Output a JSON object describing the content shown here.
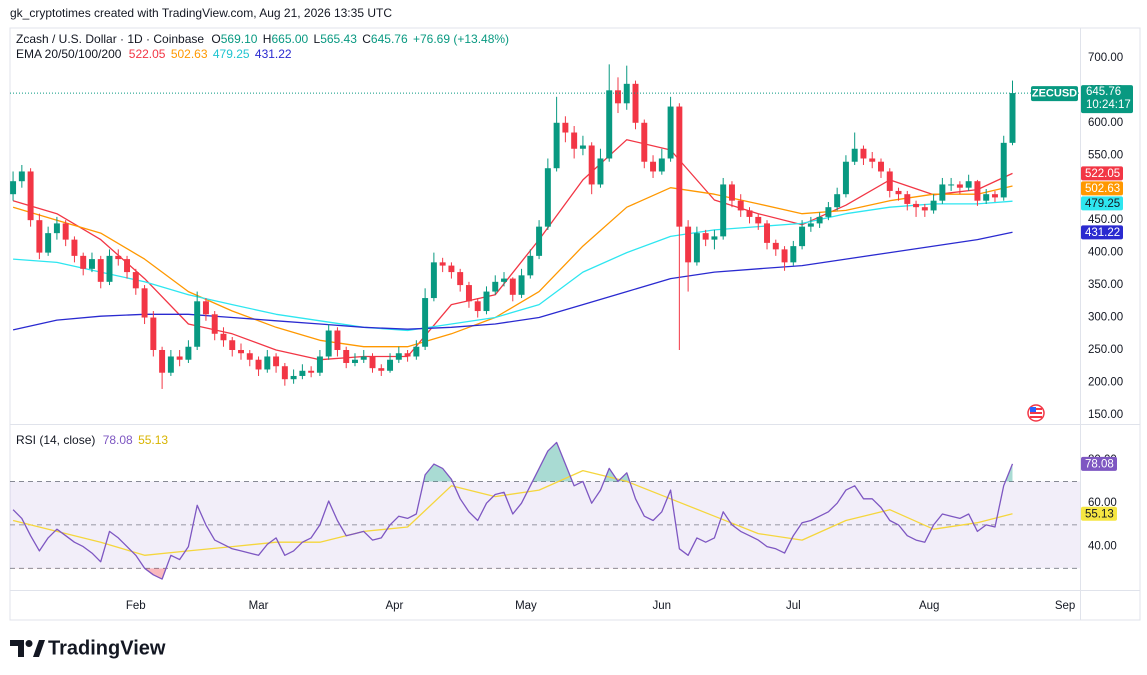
{
  "header": {
    "attribution": "gk_cryptotimes created with TradingView.com, Aug 21, 2026 13:35 UTC"
  },
  "footer": {
    "logo": "TradingView"
  },
  "chart_data": [
    {
      "type": "candlestick",
      "title": "Zcash / U.S. Dollar · 1D · Coinbase",
      "ohlc_labels": [
        "O",
        "H",
        "L",
        "C"
      ],
      "ohlc": [
        "569.10",
        "665.00",
        "565.43",
        "645.76"
      ],
      "change": "+76.69 (+13.48%)",
      "indicator": "EMA 20/50/100/200",
      "symbol_tag": "ZECUSD",
      "countdown": "10:24:17",
      "up_color": "#089981",
      "down_color": "#f23645",
      "candles": [
        [
          490,
          525,
          480,
          510
        ],
        [
          510,
          535,
          500,
          525
        ],
        [
          525,
          530,
          440,
          450
        ],
        [
          450,
          460,
          390,
          400
        ],
        [
          400,
          440,
          395,
          430
        ],
        [
          430,
          455,
          420,
          445
        ],
        [
          445,
          450,
          410,
          420
        ],
        [
          420,
          425,
          385,
          395
        ],
        [
          395,
          400,
          365,
          375
        ],
        [
          375,
          400,
          370,
          390
        ],
        [
          390,
          395,
          345,
          355
        ],
        [
          355,
          405,
          350,
          395
        ],
        [
          395,
          405,
          380,
          390
        ],
        [
          390,
          395,
          360,
          370
        ],
        [
          370,
          375,
          335,
          345
        ],
        [
          345,
          350,
          290,
          300
        ],
        [
          300,
          310,
          240,
          250
        ],
        [
          250,
          255,
          190,
          215
        ],
        [
          215,
          250,
          210,
          240
        ],
        [
          240,
          250,
          225,
          235
        ],
        [
          235,
          265,
          230,
          255
        ],
        [
          255,
          340,
          250,
          325
        ],
        [
          325,
          330,
          295,
          305
        ],
        [
          305,
          310,
          265,
          275
        ],
        [
          275,
          285,
          255,
          265
        ],
        [
          265,
          270,
          240,
          250
        ],
        [
          250,
          260,
          235,
          245
        ],
        [
          245,
          250,
          225,
          235
        ],
        [
          235,
          240,
          210,
          220
        ],
        [
          220,
          250,
          215,
          240
        ],
        [
          240,
          245,
          215,
          225
        ],
        [
          225,
          230,
          195,
          205
        ],
        [
          205,
          220,
          198,
          210
        ],
        [
          210,
          228,
          205,
          218
        ],
        [
          218,
          225,
          208,
          215
        ],
        [
          215,
          250,
          210,
          240
        ],
        [
          240,
          290,
          235,
          280
        ],
        [
          280,
          285,
          240,
          250
        ],
        [
          250,
          255,
          222,
          230
        ],
        [
          230,
          245,
          225,
          235
        ],
        [
          235,
          250,
          230,
          240
        ],
        [
          240,
          245,
          215,
          222
        ],
        [
          222,
          228,
          210,
          218
        ],
        [
          218,
          245,
          215,
          235
        ],
        [
          235,
          255,
          230,
          245
        ],
        [
          245,
          250,
          232,
          240
        ],
        [
          240,
          265,
          235,
          255
        ],
        [
          255,
          345,
          250,
          330
        ],
        [
          330,
          400,
          325,
          385
        ],
        [
          385,
          392,
          370,
          380
        ],
        [
          380,
          385,
          360,
          370
        ],
        [
          370,
          375,
          340,
          350
        ],
        [
          350,
          355,
          315,
          325
        ],
        [
          325,
          330,
          300,
          310
        ],
        [
          310,
          348,
          305,
          340
        ],
        [
          340,
          365,
          335,
          355
        ],
        [
          355,
          370,
          348,
          360
        ],
        [
          360,
          362,
          325,
          335
        ],
        [
          335,
          375,
          330,
          365
        ],
        [
          365,
          405,
          360,
          395
        ],
        [
          395,
          450,
          390,
          440
        ],
        [
          440,
          545,
          435,
          530
        ],
        [
          530,
          640,
          525,
          600
        ],
        [
          600,
          610,
          570,
          585
        ],
        [
          585,
          595,
          545,
          560
        ],
        [
          560,
          580,
          550,
          565
        ],
        [
          565,
          570,
          490,
          505
        ],
        [
          505,
          560,
          500,
          545
        ],
        [
          545,
          690,
          540,
          650
        ],
        [
          650,
          670,
          615,
          630
        ],
        [
          630,
          688,
          620,
          660
        ],
        [
          660,
          665,
          590,
          600
        ],
        [
          600,
          605,
          530,
          540
        ],
        [
          540,
          550,
          515,
          525
        ],
        [
          525,
          560,
          520,
          545
        ],
        [
          545,
          640,
          540,
          625
        ],
        [
          625,
          630,
          250,
          440
        ],
        [
          440,
          450,
          340,
          385
        ],
        [
          385,
          440,
          380,
          430
        ],
        [
          430,
          435,
          410,
          420
        ],
        [
          420,
          435,
          405,
          425
        ],
        [
          425,
          515,
          420,
          505
        ],
        [
          505,
          510,
          470,
          480
        ],
        [
          480,
          490,
          455,
          465
        ],
        [
          465,
          470,
          445,
          455
        ],
        [
          455,
          460,
          435,
          445
        ],
        [
          445,
          450,
          405,
          415
        ],
        [
          415,
          420,
          395,
          405
        ],
        [
          405,
          410,
          372,
          385
        ],
        [
          385,
          418,
          380,
          410
        ],
        [
          410,
          450,
          405,
          440
        ],
        [
          440,
          455,
          432,
          445
        ],
        [
          445,
          462,
          438,
          455
        ],
        [
          455,
          478,
          450,
          470
        ],
        [
          470,
          500,
          465,
          490
        ],
        [
          490,
          550,
          485,
          540
        ],
        [
          540,
          585,
          535,
          560
        ],
        [
          560,
          565,
          535,
          545
        ],
        [
          545,
          555,
          530,
          540
        ],
        [
          540,
          545,
          515,
          525
        ],
        [
          525,
          530,
          485,
          495
        ],
        [
          495,
          500,
          480,
          490
        ],
        [
          490,
          495,
          465,
          475
        ],
        [
          475,
          480,
          455,
          470
        ],
        [
          470,
          475,
          455,
          465
        ],
        [
          465,
          490,
          460,
          480
        ],
        [
          480,
          515,
          475,
          505
        ],
        [
          505,
          515,
          495,
          505
        ],
        [
          505,
          510,
          490,
          500
        ],
        [
          500,
          520,
          495,
          510
        ],
        [
          510,
          512,
          472,
          480
        ],
        [
          480,
          498,
          475,
          490
        ],
        [
          490,
          495,
          478,
          485
        ],
        [
          485,
          580,
          480,
          569.1
        ],
        [
          569.1,
          665.0,
          565.43,
          645.76
        ]
      ],
      "series": [
        {
          "name": "EMA 20",
          "color": "#f23645",
          "x": [
            0,
            5,
            10,
            15,
            20,
            25,
            30,
            35,
            40,
            45,
            50,
            55,
            60,
            65,
            70,
            75,
            80,
            85,
            90,
            95,
            100,
            105,
            110,
            114
          ],
          "values": [
            480,
            460,
            420,
            360,
            290,
            275,
            250,
            235,
            240,
            240,
            320,
            335,
            420,
            512,
            574,
            558,
            481,
            460,
            443,
            473,
            512,
            489,
            497,
            522.05
          ]
        },
        {
          "name": "EMA 50",
          "color": "#ff9800",
          "x": [
            0,
            5,
            10,
            15,
            20,
            25,
            30,
            35,
            40,
            45,
            50,
            55,
            60,
            65,
            70,
            75,
            80,
            85,
            90,
            95,
            100,
            105,
            110,
            114
          ],
          "values": [
            470,
            450,
            430,
            390,
            340,
            310,
            285,
            265,
            255,
            255,
            275,
            300,
            340,
            410,
            470,
            500,
            490,
            475,
            460,
            465,
            480,
            490,
            490,
            502.63
          ]
        },
        {
          "name": "EMA 100",
          "color": "#2ee6f0",
          "x": [
            0,
            5,
            10,
            15,
            20,
            25,
            30,
            35,
            40,
            45,
            50,
            55,
            60,
            65,
            70,
            75,
            80,
            85,
            90,
            95,
            100,
            105,
            110,
            114
          ],
          "values": [
            390,
            385,
            370,
            355,
            335,
            320,
            305,
            295,
            285,
            280,
            290,
            300,
            320,
            370,
            400,
            425,
            435,
            440,
            445,
            460,
            470,
            475,
            475,
            479.25
          ]
        },
        {
          "name": "EMA 200",
          "color": "#2a2ad0",
          "x": [
            0,
            5,
            10,
            15,
            20,
            25,
            30,
            35,
            40,
            45,
            50,
            55,
            60,
            65,
            70,
            75,
            80,
            85,
            90,
            95,
            100,
            105,
            110,
            114
          ],
          "values": [
            281,
            296,
            302,
            305,
            305,
            300,
            295,
            290,
            285,
            282,
            285,
            290,
            300,
            320,
            340,
            360,
            370,
            375,
            380,
            390,
            400,
            410,
            420,
            431.22
          ]
        }
      ],
      "ylim": [
        136,
        746
      ],
      "yticks": [
        {
          "value": 150,
          "label": "150.00"
        },
        {
          "value": 200,
          "label": "200.00"
        },
        {
          "value": 250,
          "label": "250.00"
        },
        {
          "value": 300,
          "label": "300.00"
        },
        {
          "value": 350,
          "label": "350.00"
        },
        {
          "value": 400,
          "label": "400.00"
        },
        {
          "value": 450,
          "label": "450.00"
        },
        {
          "value": 500,
          "label": "500.00"
        },
        {
          "value": 550,
          "label": "550.00"
        },
        {
          "value": 600,
          "label": "600.00"
        },
        {
          "value": 650,
          "label": "650.00"
        },
        {
          "value": 700,
          "label": "700.00"
        }
      ],
      "xlim": [
        -0.35,
        121.7
      ],
      "xticks": [
        {
          "value": 14,
          "label": "Feb"
        },
        {
          "value": 28,
          "label": "Mar"
        },
        {
          "value": 43.5,
          "label": "Apr"
        },
        {
          "value": 58.5,
          "label": "May"
        },
        {
          "value": 74,
          "label": "Jun"
        },
        {
          "value": 89,
          "label": "Jul"
        },
        {
          "value": 104.5,
          "label": "Aug"
        },
        {
          "value": 120,
          "label": "Sep"
        }
      ],
      "grid": false
    },
    {
      "type": "line",
      "title": "RSI (14, close)",
      "series": [
        {
          "name": "RSI",
          "color": "#7e57c2",
          "values": [
            57,
            53,
            45,
            38,
            44,
            48,
            45,
            42,
            40,
            37,
            33,
            47,
            44,
            40,
            36,
            30,
            27,
            25,
            36,
            34,
            40,
            59,
            50,
            43,
            41,
            39,
            38,
            37,
            36,
            41,
            44,
            36,
            38,
            42,
            44,
            50,
            61,
            52,
            45,
            46,
            47,
            43,
            44,
            50,
            54,
            53,
            55,
            73,
            78,
            76,
            71,
            62,
            56,
            52,
            60,
            64,
            65,
            55,
            60,
            68,
            76,
            84,
            88,
            78,
            68,
            70,
            60,
            66,
            76,
            70,
            74,
            62,
            54,
            52,
            56,
            66,
            39,
            36,
            44,
            42,
            44,
            56,
            50,
            47,
            45,
            43,
            40,
            39,
            37,
            45,
            51,
            52,
            54,
            56,
            60,
            66,
            68,
            62,
            62,
            58,
            52,
            50,
            45,
            43,
            42,
            50,
            55,
            54,
            53,
            55,
            47,
            50,
            49,
            68,
            78.08
          ]
        },
        {
          "name": "RSI-based MA",
          "color": "#f5d63d",
          "x": [
            0,
            5,
            10,
            15,
            20,
            25,
            30,
            35,
            40,
            45,
            50,
            55,
            60,
            65,
            70,
            75,
            80,
            85,
            90,
            95,
            100,
            105,
            110,
            114
          ],
          "values": [
            52,
            47,
            42,
            36,
            38,
            40,
            42,
            42,
            47,
            49,
            68,
            63,
            66,
            75,
            70,
            62,
            54,
            46,
            43,
            52,
            57,
            48,
            51,
            55.13
          ]
        }
      ],
      "band": [
        30,
        70
      ],
      "midline": 50,
      "ylim": [
        20,
        96
      ],
      "yticks": [
        {
          "value": 40,
          "label": "40.00"
        },
        {
          "value": 60,
          "label": "60.00"
        },
        {
          "value": 80,
          "label": "80.00"
        }
      ],
      "xlim": [
        -0.35,
        121.7
      ]
    }
  ]
}
